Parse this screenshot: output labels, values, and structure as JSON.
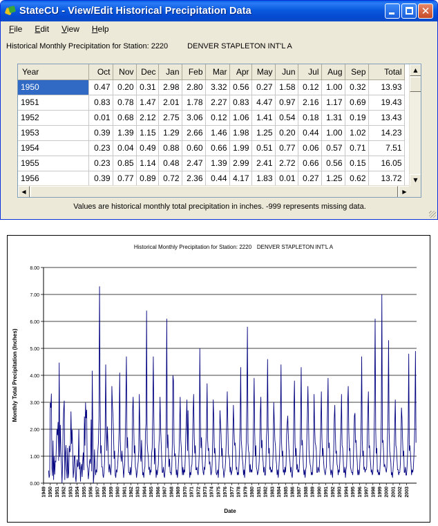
{
  "window": {
    "title": "StateCU - View/Edit Historical Precipitation Data",
    "menu": [
      {
        "label": "File",
        "key": "F"
      },
      {
        "label": "Edit",
        "key": "E"
      },
      {
        "label": "View",
        "key": "V"
      },
      {
        "label": "Help",
        "key": "H"
      }
    ],
    "station_label": "Historical Monthly Precipitation for Station: 2220",
    "station_name": "DENVER STAPLETON INT'L A",
    "footer_note": "Values are historical monthly total precipitation in inches.  -999 represents missing data.",
    "icons": [
      "app-icon",
      "minimize-icon",
      "maximize-icon",
      "close-icon"
    ]
  },
  "table": {
    "columns": [
      "Year",
      "Oct",
      "Nov",
      "Dec",
      "Jan",
      "Feb",
      "Mar",
      "Apr",
      "May",
      "Jun",
      "Jul",
      "Aug",
      "Sep",
      "Total"
    ],
    "selected_row": 0,
    "rows": [
      [
        "1950",
        "0.47",
        "0.20",
        "0.31",
        "2.98",
        "2.80",
        "3.32",
        "0.56",
        "0.27",
        "1.58",
        "0.12",
        "1.00",
        "0.32",
        "13.93"
      ],
      [
        "1951",
        "0.83",
        "0.78",
        "1.47",
        "2.01",
        "1.78",
        "2.27",
        "0.83",
        "4.47",
        "0.97",
        "2.16",
        "1.17",
        "0.69",
        "19.43"
      ],
      [
        "1952",
        "0.01",
        "0.68",
        "2.12",
        "2.75",
        "3.06",
        "0.12",
        "1.06",
        "1.41",
        "0.54",
        "0.18",
        "1.31",
        "0.19",
        "13.43"
      ],
      [
        "1953",
        "0.39",
        "1.39",
        "1.15",
        "1.29",
        "2.66",
        "1.46",
        "1.98",
        "1.25",
        "0.20",
        "0.44",
        "1.00",
        "1.02",
        "14.23"
      ],
      [
        "1954",
        "0.23",
        "0.04",
        "0.49",
        "0.88",
        "0.60",
        "0.66",
        "1.99",
        "0.51",
        "0.77",
        "0.06",
        "0.57",
        "0.71",
        "7.51"
      ],
      [
        "1955",
        "0.23",
        "0.85",
        "1.14",
        "0.48",
        "2.47",
        "1.39",
        "2.99",
        "2.41",
        "2.72",
        "0.66",
        "0.56",
        "0.15",
        "16.05"
      ],
      [
        "1956",
        "0.39",
        "0.77",
        "0.89",
        "0.72",
        "2.36",
        "0.44",
        "4.17",
        "1.83",
        "0.01",
        "0.27",
        "1.25",
        "0.62",
        "13.72"
      ]
    ]
  },
  "chart_data": {
    "type": "line",
    "title": "Historical Monthly Precipitation for Station: 2220",
    "title_station": "DENVER STAPLETON INT'L A",
    "xlabel": "Date",
    "ylabel": "Monthly Total Precipitation (Inches)",
    "ylim": [
      0,
      8
    ],
    "yticks": [
      "0.00",
      "1.00",
      "2.00",
      "3.00",
      "4.00",
      "5.00",
      "6.00",
      "7.00",
      "8.00"
    ],
    "xticks": [
      "1949",
      "1950",
      "1951",
      "1952",
      "1953",
      "1954",
      "1955",
      "1956",
      "1957",
      "1958",
      "1959",
      "1960",
      "1961",
      "1962",
      "1963",
      "1964",
      "1965",
      "1966",
      "1967",
      "1968",
      "1969",
      "1970",
      "1971",
      "1972",
      "1973",
      "1974",
      "1975",
      "1976",
      "1977",
      "1978",
      "1979",
      "1980",
      "1981",
      "1982",
      "1983",
      "1984",
      "1985",
      "1986",
      "1987",
      "1988",
      "1989",
      "1990",
      "1991",
      "1992",
      "1993",
      "1994",
      "1995",
      "1996",
      "1997",
      "1998",
      "1999",
      "2000",
      "2001",
      "2002",
      "2003"
    ],
    "grid": "horizontal",
    "color": "#00007f",
    "series": [
      {
        "x_start": "1949-10",
        "x_step": "month",
        "values_by_water_year": [
          [
            0.47,
            0.2,
            0.31,
            2.98,
            2.8,
            3.32,
            0.56,
            0.27,
            1.58,
            0.12,
            1.0,
            0.32
          ],
          [
            0.83,
            0.78,
            1.47,
            2.01,
            1.78,
            2.27,
            0.83,
            4.47,
            0.97,
            2.16,
            1.17,
            0.69
          ],
          [
            0.01,
            0.68,
            2.12,
            2.75,
            3.06,
            0.12,
            1.06,
            1.41,
            0.54,
            0.18,
            1.31,
            0.19
          ],
          [
            0.39,
            1.39,
            1.15,
            1.29,
            2.66,
            1.46,
            1.98,
            1.25,
            0.2,
            0.44,
            1.0,
            1.02
          ],
          [
            0.23,
            0.04,
            0.49,
            0.88,
            0.6,
            0.66,
            1.99,
            0.51,
            0.77,
            0.06,
            0.57,
            0.71
          ],
          [
            0.23,
            0.85,
            1.14,
            0.48,
            2.47,
            1.39,
            2.99,
            2.41,
            2.72,
            0.66,
            0.56,
            0.15
          ],
          [
            0.39,
            0.77,
            0.89,
            0.72,
            2.36,
            0.44,
            4.17,
            1.83,
            0.01,
            0.27,
            1.25,
            0.62
          ],
          [
            0.3,
            0.5,
            0.4,
            0.9,
            1.2,
            1.5,
            2.4,
            7.3,
            3.2,
            1.1,
            1.4,
            0.6
          ],
          [
            0.6,
            0.3,
            0.2,
            0.4,
            0.8,
            1.9,
            4.4,
            2.2,
            1.2,
            2.1,
            1.5,
            0.7
          ],
          [
            0.4,
            0.7,
            0.5,
            0.3,
            0.6,
            3.6,
            2.9,
            2.5,
            1.8,
            0.9,
            1.2,
            0.3
          ],
          [
            0.2,
            0.5,
            0.4,
            0.6,
            0.9,
            1.3,
            2.0,
            4.1,
            1.6,
            1.0,
            0.8,
            1.2
          ],
          [
            0.9,
            0.6,
            0.2,
            0.5,
            0.7,
            1.8,
            3.1,
            4.7,
            1.3,
            1.7,
            0.9,
            0.4
          ],
          [
            0.4,
            0.3,
            0.6,
            0.3,
            0.5,
            1.0,
            2.7,
            3.2,
            2.2,
            1.1,
            1.4,
            0.6
          ],
          [
            0.5,
            0.2,
            0.4,
            0.6,
            0.8,
            1.2,
            3.3,
            2.1,
            1.0,
            0.8,
            1.6,
            0.9
          ],
          [
            0.3,
            0.4,
            0.2,
            0.5,
            0.6,
            1.9,
            2.2,
            6.4,
            1.5,
            1.2,
            1.0,
            0.5
          ],
          [
            0.6,
            0.3,
            0.5,
            0.4,
            1.1,
            1.3,
            2.6,
            4.7,
            2.4,
            0.7,
            1.3,
            0.8
          ],
          [
            0.2,
            0.5,
            0.3,
            0.5,
            0.7,
            1.4,
            1.8,
            3.2,
            2.1,
            1.5,
            0.9,
            0.4
          ],
          [
            0.4,
            0.6,
            0.3,
            0.2,
            0.5,
            1.0,
            2.5,
            6.1,
            1.3,
            1.8,
            1.2,
            0.6
          ],
          [
            0.9,
            0.4,
            0.4,
            0.3,
            0.6,
            1.5,
            4.0,
            3.8,
            1.5,
            1.0,
            1.1,
            0.8
          ],
          [
            0.3,
            0.5,
            0.2,
            0.4,
            0.8,
            1.2,
            2.2,
            3.2,
            1.6,
            1.3,
            0.7,
            0.3
          ],
          [
            0.6,
            0.3,
            0.5,
            0.4,
            0.9,
            1.8,
            2.4,
            3.1,
            1.2,
            2.7,
            1.2,
            0.9
          ],
          [
            0.2,
            0.4,
            0.3,
            0.6,
            0.7,
            1.3,
            2.6,
            3.3,
            1.8,
            1.1,
            1.4,
            0.5
          ],
          [
            0.5,
            0.6,
            0.4,
            0.3,
            0.6,
            1.1,
            5.0,
            2.4,
            1.3,
            1.7,
            1.0,
            0.6
          ],
          [
            0.4,
            0.3,
            0.6,
            0.5,
            0.9,
            1.5,
            2.1,
            3.7,
            1.6,
            1.2,
            1.3,
            0.7
          ],
          [
            0.8,
            0.5,
            0.3,
            0.4,
            0.7,
            1.6,
            3.1,
            2.4,
            1.1,
            1.3,
            0.9,
            0.4
          ],
          [
            0.3,
            0.4,
            0.5,
            0.2,
            0.6,
            1.2,
            2.7,
            2.2,
            1.8,
            1.0,
            1.3,
            0.6
          ],
          [
            0.5,
            0.2,
            0.4,
            0.5,
            0.8,
            1.4,
            2.3,
            3.4,
            2.2,
            1.1,
            1.0,
            0.9
          ],
          [
            0.4,
            0.6,
            0.3,
            0.4,
            0.5,
            1.8,
            2.9,
            2.0,
            1.4,
            1.5,
            1.2,
            0.5
          ],
          [
            0.6,
            0.3,
            0.4,
            0.3,
            0.7,
            1.3,
            2.2,
            4.3,
            1.6,
            1.3,
            0.9,
            0.7
          ],
          [
            0.3,
            0.5,
            0.2,
            0.6,
            0.9,
            1.6,
            3.1,
            5.8,
            1.5,
            1.2,
            1.1,
            0.4
          ],
          [
            0.7,
            0.4,
            0.5,
            0.4,
            0.6,
            1.1,
            2.4,
            3.9,
            1.9,
            1.0,
            1.4,
            0.6
          ],
          [
            0.5,
            0.3,
            0.4,
            0.5,
            0.8,
            1.4,
            2.6,
            3.2,
            1.3,
            1.6,
            1.0,
            0.8
          ],
          [
            0.4,
            0.6,
            0.3,
            0.3,
            0.7,
            1.7,
            2.1,
            4.6,
            2.1,
            1.1,
            1.3,
            0.5
          ],
          [
            0.6,
            0.4,
            0.5,
            0.4,
            0.6,
            1.2,
            3.0,
            2.3,
            1.6,
            1.4,
            0.9,
            0.7
          ],
          [
            0.3,
            0.5,
            0.2,
            0.5,
            0.9,
            1.5,
            2.4,
            4.4,
            1.5,
            1.0,
            1.2,
            0.4
          ],
          [
            0.5,
            0.3,
            0.6,
            0.4,
            0.7,
            1.8,
            2.2,
            2.5,
            1.8,
            1.3,
            1.0,
            0.8
          ],
          [
            0.4,
            0.6,
            0.3,
            0.2,
            0.5,
            1.2,
            2.8,
            3.8,
            1.5,
            1.0,
            1.3,
            0.5
          ],
          [
            0.7,
            0.4,
            0.5,
            0.4,
            0.8,
            1.3,
            2.4,
            4.3,
            1.4,
            1.6,
            1.1,
            0.6
          ],
          [
            0.3,
            0.5,
            0.2,
            0.5,
            0.6,
            1.6,
            2.5,
            3.6,
            2.4,
            1.2,
            0.9,
            0.7
          ],
          [
            0.6,
            0.3,
            0.4,
            0.3,
            0.7,
            1.2,
            3.3,
            2.1,
            1.5,
            1.4,
            1.2,
            0.4
          ],
          [
            0.4,
            0.6,
            0.5,
            0.4,
            0.9,
            1.4,
            2.2,
            3.4,
            1.7,
            1.0,
            1.3,
            0.8
          ],
          [
            0.5,
            0.4,
            0.3,
            0.5,
            0.6,
            1.7,
            2.8,
            3.9,
            1.3,
            1.5,
            1.0,
            0.5
          ],
          [
            0.3,
            0.5,
            0.4,
            0.2,
            0.7,
            1.2,
            2.4,
            2.9,
            1.8,
            1.1,
            1.2,
            0.7
          ],
          [
            0.6,
            0.3,
            0.5,
            0.4,
            0.8,
            1.5,
            2.1,
            3.3,
            1.4,
            1.3,
            0.9,
            0.4
          ],
          [
            0.4,
            0.6,
            0.2,
            0.5,
            0.6,
            1.3,
            3.0,
            3.6,
            1.9,
            1.2,
            1.3,
            0.6
          ],
          [
            0.5,
            0.4,
            0.4,
            0.3,
            0.7,
            1.6,
            2.5,
            2.6,
            1.5,
            1.6,
            1.1,
            0.8
          ],
          [
            0.3,
            0.5,
            0.3,
            0.4,
            0.9,
            1.2,
            2.3,
            4.7,
            1.6,
            1.0,
            1.2,
            0.5
          ],
          [
            0.6,
            0.4,
            0.5,
            0.5,
            0.6,
            1.8,
            2.7,
            3.4,
            1.3,
            1.4,
            1.0,
            0.7
          ],
          [
            0.4,
            0.5,
            0.3,
            0.4,
            0.8,
            1.4,
            3.1,
            6.1,
            2.0,
            1.1,
            1.3,
            0.4
          ],
          [
            0.5,
            0.3,
            0.4,
            0.3,
            0.7,
            1.3,
            2.4,
            7.0,
            1.5,
            1.6,
            1.2,
            0.6
          ],
          [
            0.7,
            0.6,
            0.5,
            0.4,
            0.6,
            1.7,
            2.6,
            5.3,
            1.9,
            1.2,
            1.0,
            0.8
          ],
          [
            0.3,
            0.4,
            0.2,
            0.5,
            0.8,
            1.2,
            2.2,
            3.1,
            1.4,
            1.3,
            0.9,
            0.5
          ],
          [
            0.5,
            0.3,
            0.4,
            0.4,
            0.7,
            1.5,
            2.8,
            2.4,
            1.6,
            1.0,
            1.2,
            0.4
          ],
          [
            0.4,
            0.6,
            0.3,
            0.3,
            0.6,
            1.1,
            1.9,
            4.8,
            1.2,
            1.4,
            1.1,
            0.7
          ],
          [
            0.3,
            0.5,
            0.4,
            0.5,
            0.9,
            1.4,
            2.5,
            4.9,
            1.5
          ]
        ]
      }
    ]
  }
}
